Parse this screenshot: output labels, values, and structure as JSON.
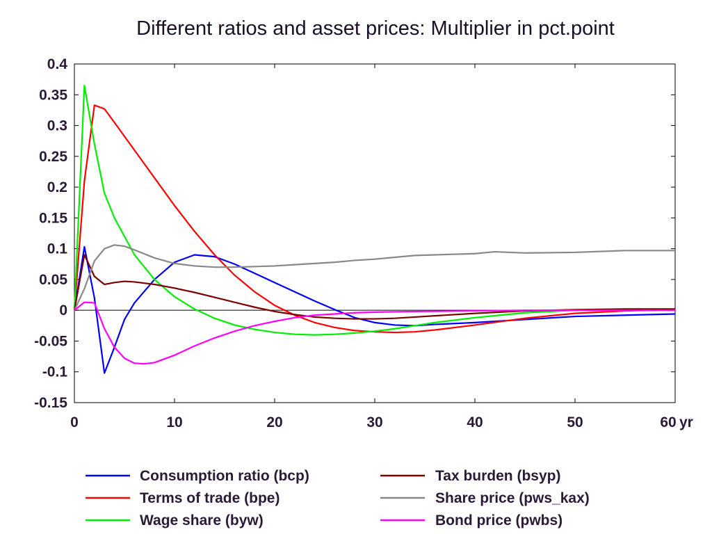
{
  "chart_data": {
    "type": "line",
    "title": "Different ratios and asset prices: Multiplier in pct.point",
    "x_unit_label": "yr",
    "xlim": [
      0,
      60
    ],
    "ylim": [
      -0.15,
      0.4
    ],
    "x_ticks": [
      0,
      10,
      20,
      30,
      40,
      50,
      60
    ],
    "y_ticks": [
      0.4,
      0.35,
      0.3,
      0.25,
      0.2,
      0.15,
      0.1,
      0.05,
      0,
      -0.05,
      -0.1,
      -0.15
    ],
    "zero_line": true,
    "grid": false,
    "legend_position": "bottom",
    "series": [
      {
        "name": "Consumption ratio (bcp)",
        "color": "#0000ff",
        "x": [
          0,
          1,
          2,
          3,
          4,
          5,
          6,
          8,
          10,
          12,
          14,
          16,
          18,
          20,
          22,
          24,
          26,
          28,
          30,
          32,
          34,
          36,
          40,
          45,
          50,
          55,
          60
        ],
        "y": [
          0,
          0.103,
          0.02,
          -0.102,
          -0.06,
          -0.015,
          0.012,
          0.05,
          0.078,
          0.09,
          0.087,
          0.075,
          0.06,
          0.045,
          0.03,
          0.015,
          0.001,
          -0.012,
          -0.02,
          -0.024,
          -0.025,
          -0.023,
          -0.02,
          -0.015,
          -0.01,
          -0.008,
          -0.006
        ]
      },
      {
        "name": "Terms of trade (bpe)",
        "color": "#ff0000",
        "x": [
          0,
          1,
          2,
          3,
          4,
          6,
          8,
          10,
          12,
          14,
          16,
          18,
          20,
          22,
          24,
          26,
          28,
          30,
          32,
          34,
          36,
          40,
          45,
          50,
          55,
          60
        ],
        "y": [
          0,
          0.21,
          0.333,
          0.327,
          0.305,
          0.26,
          0.215,
          0.17,
          0.128,
          0.09,
          0.057,
          0.03,
          0.008,
          -0.008,
          -0.02,
          -0.028,
          -0.033,
          -0.035,
          -0.036,
          -0.035,
          -0.032,
          -0.024,
          -0.013,
          -0.005,
          -0.001,
          0.001
        ]
      },
      {
        "name": "Wage share (byw)",
        "color": "#00ee00",
        "x": [
          0,
          1,
          2,
          3,
          4,
          6,
          8,
          10,
          12,
          14,
          16,
          18,
          20,
          22,
          24,
          26,
          28,
          30,
          32,
          34,
          36,
          40,
          45,
          50,
          55,
          60
        ],
        "y": [
          0,
          0.365,
          0.27,
          0.19,
          0.15,
          0.09,
          0.05,
          0.022,
          0.002,
          -0.013,
          -0.024,
          -0.031,
          -0.036,
          -0.039,
          -0.04,
          -0.039,
          -0.037,
          -0.034,
          -0.03,
          -0.025,
          -0.02,
          -0.012,
          -0.004,
          0.0,
          0.001,
          0.001
        ]
      },
      {
        "name": "Tax burden (bsyp)",
        "color": "#7a0000",
        "x": [
          0,
          1,
          2,
          3,
          4,
          5,
          6,
          8,
          10,
          12,
          14,
          16,
          18,
          20,
          22,
          24,
          26,
          28,
          30,
          32,
          34,
          36,
          40,
          45,
          50,
          55,
          60
        ],
        "y": [
          0,
          0.09,
          0.055,
          0.042,
          0.045,
          0.047,
          0.046,
          0.042,
          0.036,
          0.029,
          0.021,
          0.013,
          0.005,
          -0.002,
          -0.007,
          -0.011,
          -0.013,
          -0.014,
          -0.014,
          -0.013,
          -0.011,
          -0.009,
          -0.005,
          -0.001,
          0.001,
          0.002,
          0.002
        ]
      },
      {
        "name": "Share price (pws_kax)",
        "color": "#888888",
        "x": [
          0,
          1,
          2,
          3,
          4,
          5,
          6,
          8,
          10,
          12,
          14,
          16,
          18,
          20,
          22,
          24,
          26,
          28,
          30,
          32,
          34,
          36,
          40,
          42,
          45,
          50,
          55,
          60
        ],
        "y": [
          0,
          0.035,
          0.08,
          0.1,
          0.106,
          0.104,
          0.098,
          0.085,
          0.076,
          0.072,
          0.07,
          0.07,
          0.071,
          0.072,
          0.074,
          0.076,
          0.078,
          0.081,
          0.083,
          0.086,
          0.089,
          0.09,
          0.092,
          0.095,
          0.093,
          0.094,
          0.097,
          0.097
        ]
      },
      {
        "name": "Bond price (pwbs)",
        "color": "#ff00ff",
        "x": [
          0,
          1,
          2,
          3,
          4,
          5,
          6,
          7,
          8,
          10,
          12,
          14,
          16,
          18,
          20,
          22,
          24,
          26,
          28,
          30,
          34,
          40,
          45,
          50,
          55,
          60
        ],
        "y": [
          0,
          0.013,
          0.012,
          -0.03,
          -0.06,
          -0.078,
          -0.086,
          -0.087,
          -0.085,
          -0.073,
          -0.058,
          -0.045,
          -0.034,
          -0.025,
          -0.018,
          -0.012,
          -0.008,
          -0.006,
          -0.004,
          -0.003,
          -0.002,
          -0.001,
          0.0,
          0.0,
          0.0,
          0.0
        ]
      }
    ]
  }
}
